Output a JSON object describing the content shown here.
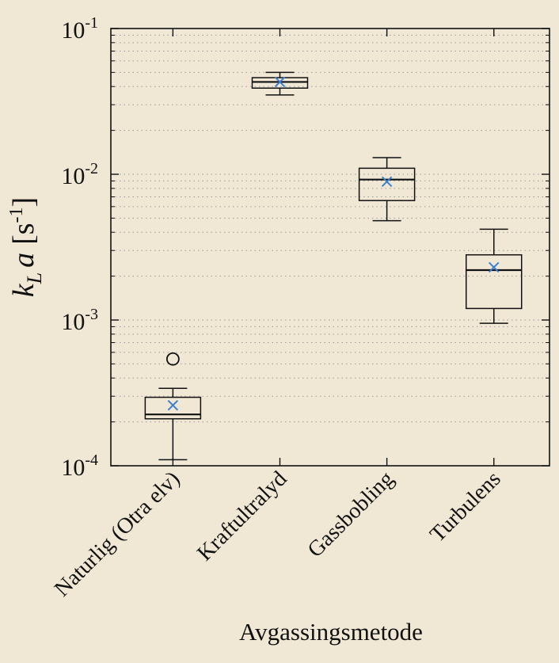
{
  "chart_data": {
    "type": "box",
    "title": "",
    "xlabel": "Avgassingsmetode",
    "ylabel": {
      "k": "k",
      "sub": "L",
      "a": "a",
      "unit": "[s",
      "exp": "-1",
      "close": "]"
    },
    "yscale": "log",
    "ylim": [
      0.0001,
      0.1
    ],
    "y_ticks": [
      {
        "base": "10",
        "exp": "-4",
        "value": 0.0001
      },
      {
        "base": "10",
        "exp": "-3",
        "value": 0.001
      },
      {
        "base": "10",
        "exp": "-2",
        "value": 0.01
      },
      {
        "base": "10",
        "exp": "-1",
        "value": 0.1
      }
    ],
    "grid": "dotted, major and minor (horizontal only)",
    "categories": [
      "Naturlig (Otra elv)",
      "Kraftultralyd",
      "Gassbobling",
      "Turbulens"
    ],
    "boxes": [
      {
        "category": "Naturlig (Otra elv)",
        "whisker_low": 0.00011,
        "q1": 0.00021,
        "median": 0.000225,
        "q3": 0.000295,
        "whisker_high": 0.00034,
        "mean": 0.00026,
        "outliers": [
          0.00054
        ]
      },
      {
        "category": "Kraftultralyd",
        "whisker_low": 0.035,
        "q1": 0.039,
        "median": 0.043,
        "q3": 0.046,
        "whisker_high": 0.05,
        "mean": 0.043,
        "outliers": []
      },
      {
        "category": "Gassbobling",
        "whisker_low": 0.0048,
        "q1": 0.0066,
        "median": 0.0092,
        "q3": 0.011,
        "whisker_high": 0.013,
        "mean": 0.0089,
        "outliers": []
      },
      {
        "category": "Turbulens",
        "whisker_low": 0.00095,
        "q1": 0.0012,
        "median": 0.0022,
        "q3": 0.0028,
        "whisker_high": 0.0042,
        "mean": 0.0023,
        "outliers": []
      }
    ],
    "colors": {
      "box": "#111111",
      "mean_marker": "#3b7fd0",
      "grid": "#9a9a9a",
      "plot_bg": "#f0e8d5"
    }
  }
}
